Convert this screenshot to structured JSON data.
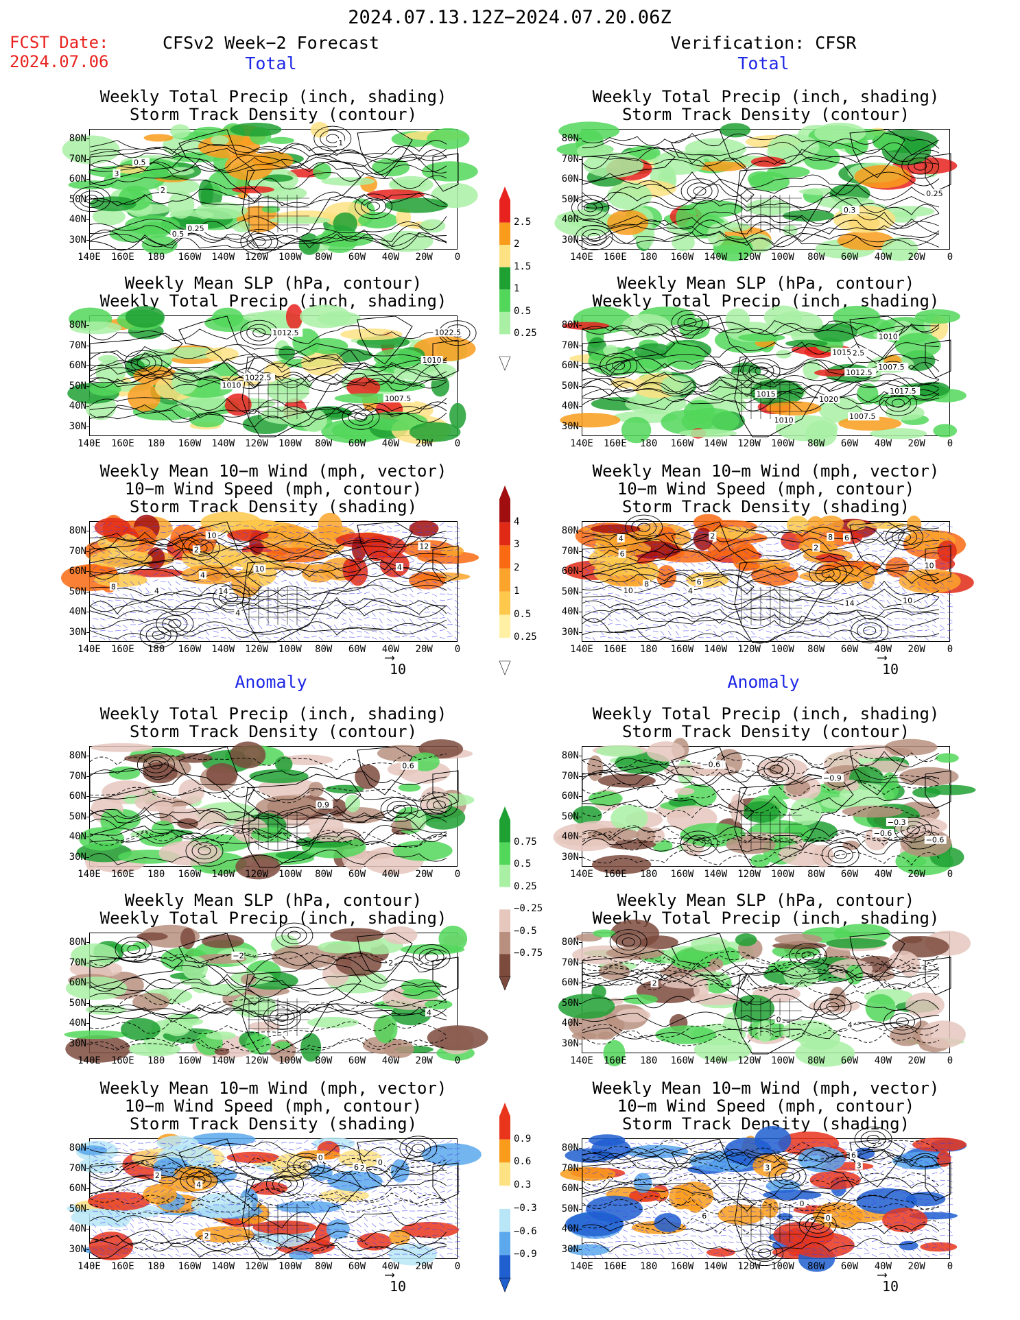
{
  "title": "2024.07.13.12Z−2024.07.20.06Z",
  "fcst_date_label": "FCST Date:",
  "fcst_date_value": "2024.07.06",
  "left_header": "CFSv2 Week−2 Forecast",
  "right_header": "Verification: CFSR",
  "section_total": "Total",
  "section_anomaly": "Anomaly",
  "panel_titles": {
    "precip_storm": [
      "Weekly Total Precip (inch, shading)",
      "Storm Track Density (contour)"
    ],
    "slp_precip": [
      "Weekly Mean SLP (hPa, contour)",
      "Weekly Total Precip (inch, shading)"
    ],
    "wind": [
      "Weekly Mean 10−m Wind (mph, vector)",
      "10−m Wind Speed (mph, contour)",
      "Storm Track Density (shading)"
    ]
  },
  "lat_labels": [
    "80N",
    "70N",
    "60N",
    "50N",
    "40N",
    "30N"
  ],
  "lon_labels": [
    "140E",
    "160E",
    "180",
    "160W",
    "140W",
    "120W",
    "100W",
    "80W",
    "60W",
    "40W",
    "20W",
    "0"
  ],
  "vector_ref": "10",
  "colorbars": {
    "precip_total": {
      "labels": [
        "2.5",
        "2",
        "1.5",
        "1",
        "0.5",
        "0.25"
      ],
      "colors": [
        "#e8231f",
        "#f99c1c",
        "#fde283",
        "#1fa032",
        "#52d75a",
        "#a9f0a4",
        "#ffffff"
      ]
    },
    "storm_total": {
      "labels": [
        "4",
        "3",
        "2",
        "1",
        "0.5",
        "0.25"
      ],
      "colors": [
        "#a10e0f",
        "#e02a16",
        "#f96a12",
        "#fba42c",
        "#fdc84b",
        "#fff0a3",
        "#ffffff"
      ]
    },
    "precip_anom": {
      "labels": [
        "0.75",
        "0.5",
        "0.25",
        "−0.25",
        "−0.5",
        "−0.75"
      ],
      "colors": [
        "#1fa032",
        "#52d75a",
        "#a9f0a4",
        "#ffffff",
        "#e5c7bd",
        "#b9907f",
        "#7c4b3e"
      ]
    },
    "storm_anom": {
      "labels": [
        "0.9",
        "0.6",
        "0.3",
        "−0.3",
        "−0.6",
        "−0.9"
      ],
      "colors": [
        "#e8351c",
        "#f99c1c",
        "#fde283",
        "#ffffff",
        "#b9e6f6",
        "#5ba8ec",
        "#1f5fd0"
      ]
    }
  },
  "contour_labels": {
    "fc_total_precip": [
      "0.5",
      "0.25",
      "0.5",
      "2",
      "3",
      "1"
    ],
    "vf_total_precip": [
      "0.25",
      "0.3"
    ],
    "fc_total_slp": [
      "1010",
      "1010",
      "1007.5",
      "1012.5",
      "1022.5",
      "1022.5"
    ],
    "vf_total_slp": [
      "1007.5",
      "1007.5",
      "1012.5",
      "1010",
      "1012.5",
      "1015",
      "1015",
      "1010",
      "1017.5",
      "1020"
    ],
    "fc_total_wind": [
      "2",
      "4",
      "4",
      "4",
      "10",
      "10",
      "12",
      "8",
      "14",
      "4"
    ],
    "vf_total_wind": [
      "8",
      "6",
      "2",
      "4",
      "4",
      "2",
      "6",
      "8",
      "10",
      "14",
      "10",
      "10",
      "6"
    ],
    "fc_anom_precip": [
      "0.6",
      "0.9"
    ],
    "vf_anom_precip": [
      "−0.9",
      "−0.3",
      "−0.6",
      "−0.6",
      "−0.6",
      "−0.3"
    ],
    "fc_anom_slp": [
      "4",
      "2",
      "−2"
    ],
    "vf_anom_slp": [
      "4",
      "0",
      "2"
    ],
    "fc_anom_wind": [
      "0",
      "2",
      "2",
      "2",
      "4",
      "6",
      "0"
    ],
    "vf_anom_wind": [
      "6",
      "3",
      "0",
      "0",
      "6",
      "3"
    ]
  }
}
